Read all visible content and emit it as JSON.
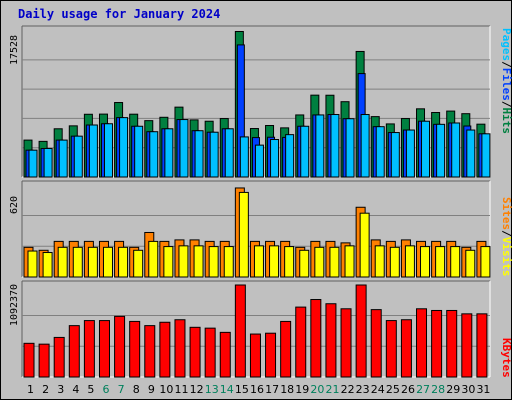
{
  "title": "Daily usage for January 2024",
  "colors": {
    "hits": "#008040",
    "files": "#0040ff",
    "pages": "#00c0ff",
    "visits": "#ff8000",
    "sites": "#ffff00",
    "kbytes": "#ff0000",
    "weekend": "#00805c",
    "weekday": "#000000",
    "grid": "#808080"
  },
  "side_labels": {
    "pages": "Pages",
    "files": "Files",
    "hits": "Hits",
    "sites": "Sites",
    "visits": "Visits",
    "kbytes": "KBytes",
    "sep": "/"
  },
  "chart_data": [
    {
      "type": "bar",
      "name": "hits-files-pages",
      "ymax_label": "17528",
      "ylim": [
        0,
        17528
      ],
      "categories": [
        "1",
        "2",
        "3",
        "4",
        "5",
        "6",
        "7",
        "8",
        "9",
        "10",
        "11",
        "12",
        "13",
        "14",
        "15",
        "16",
        "17",
        "18",
        "19",
        "20",
        "21",
        "22",
        "23",
        "24",
        "25",
        "26",
        "27",
        "28",
        "29",
        "30",
        "31"
      ],
      "weekend": [
        6,
        7,
        13,
        14,
        20,
        21,
        27,
        28
      ],
      "series": [
        {
          "name": "Hits",
          "values": [
            4400,
            4250,
            5750,
            6100,
            7480,
            7500,
            8880,
            7490,
            6720,
            7120,
            8330,
            6810,
            6650,
            6970,
            17350,
            5780,
            6140,
            5860,
            7400,
            9760,
            9750,
            8980,
            14970,
            7200,
            6330,
            6970,
            8130,
            7690,
            7860,
            7550,
            6300
          ]
        },
        {
          "name": "Files",
          "values": [
            3200,
            3400,
            4400,
            4870,
            6200,
            6350,
            7080,
            6050,
            5400,
            5750,
            6850,
            5520,
            5340,
            5750,
            15750,
            4700,
            4740,
            4720,
            6050,
            7400,
            7450,
            6950,
            12330,
            6000,
            5300,
            5600,
            6650,
            6280,
            6440,
            6080,
            5150
          ]
        },
        {
          "name": "Pages",
          "values": [
            3200,
            3400,
            4400,
            4870,
            6200,
            6350,
            7080,
            6050,
            5400,
            5750,
            6850,
            5520,
            5340,
            5750,
            4780,
            3800,
            4470,
            5050,
            6050,
            7400,
            7450,
            6950,
            7450,
            6000,
            5300,
            5600,
            6650,
            6280,
            6440,
            5600,
            5150
          ]
        }
      ]
    },
    {
      "type": "bar",
      "name": "visits-sites",
      "ymax_label": "620",
      "ylim": [
        0,
        620
      ],
      "series": [
        {
          "name": "Visits",
          "values": [
            200,
            180,
            240,
            240,
            240,
            240,
            240,
            200,
            300,
            240,
            250,
            250,
            240,
            240,
            600,
            240,
            240,
            240,
            200,
            240,
            240,
            230,
            470,
            250,
            240,
            250,
            240,
            240,
            240,
            200,
            240
          ]
        },
        {
          "name": "Sites",
          "values": [
            175,
            165,
            200,
            200,
            200,
            200,
            200,
            180,
            240,
            205,
            210,
            210,
            205,
            205,
            570,
            210,
            210,
            205,
            180,
            200,
            200,
            210,
            430,
            210,
            200,
            210,
            205,
            205,
            205,
            180,
            205
          ]
        }
      ]
    },
    {
      "type": "bar",
      "name": "kbytes",
      "ymax_label": "1092370",
      "ylim": [
        0,
        1092370
      ],
      "series": [
        {
          "name": "KBytes",
          "values": [
            400000,
            390000,
            470000,
            610000,
            670000,
            670000,
            720000,
            660000,
            610000,
            650000,
            680000,
            590000,
            580000,
            530000,
            1092370,
            510000,
            520000,
            660000,
            830000,
            920000,
            870000,
            810000,
            1092370,
            800000,
            670000,
            680000,
            810000,
            790000,
            790000,
            750000,
            750000
          ]
        }
      ]
    }
  ]
}
